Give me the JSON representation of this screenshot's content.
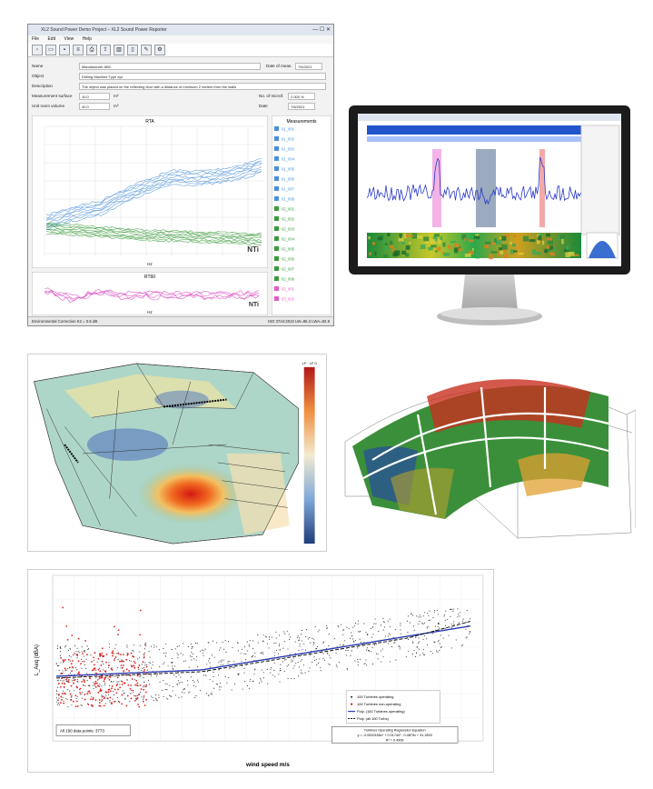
{
  "window": {
    "title": "XL2 Sound Power Demo Project – XL2 Sound Power Reporter",
    "menu": [
      "File",
      "Edit",
      "View",
      "Help"
    ],
    "form": {
      "name_label": "Name",
      "name_value": "Manufacturer ABC",
      "date_of_meas_label": "Date of meas.",
      "date_of_meas_value": "7/6/2021",
      "object_label": "Object",
      "object_value": "Drilling Machine Type xyz",
      "description_label": "Description",
      "description_value": "The object was placed on the reflecting floor with a distance of minimum 2 meters from the walls",
      "surface_label": "Measurement surface",
      "surface_value": "10.0",
      "surface_unit": "m²",
      "no_mics_label": "No. of microf.",
      "no_mics_value": "2.000 %",
      "volume_label": "Unit room volume",
      "volume_value": "40.0",
      "volume_unit": "m³",
      "date_label": "Date",
      "date_value": "7/6/2021"
    },
    "chart1": {
      "title": "RTA",
      "xlabel": "Hz",
      "logo": "NTi"
    },
    "chart2": {
      "title": "RT60",
      "xlabel": "Hz",
      "logo": "NTi"
    },
    "measurements_title": "Measurements",
    "measurements": [
      "01_001",
      "01_002",
      "01_003",
      "01_004",
      "01_005",
      "01_006",
      "01_007",
      "01_008",
      "02_001",
      "02_002",
      "02_003",
      "02_004",
      "02_005",
      "02_006",
      "02_007",
      "02_008",
      "03_001",
      "03_002"
    ],
    "status_left": "Environmental Correction K2 = 0.5 dB",
    "status_right": "ISO 3744:2010   LW=86.2   LWA=82.9"
  },
  "colors": {
    "blue": "#4a90d9",
    "green": "#3a9a3a",
    "pink": "#e05cc8",
    "red": "#e0201e",
    "grid": "#d8d8d8"
  },
  "scatter": {
    "xlabel": "wind speed m/s",
    "ylabel": "L_Aeq (dBA)",
    "count_box": "All 190 data points: 3773",
    "legend": [
      "100 Turbines operating",
      "100 Turbines non-operating",
      "Poly. (100 Turbines operating)",
      "Poly. (all 100 Turbs)"
    ],
    "regression_title": "Turbines Operating Regression Equation",
    "regression_eq": "y = -0.0000165x⁴ + 0.0174x³ - 0.4879x + 31.1893",
    "regression_r2": "R² = 0.4906"
  },
  "hall": {
    "legend_top": "LF · LF 0"
  }
}
